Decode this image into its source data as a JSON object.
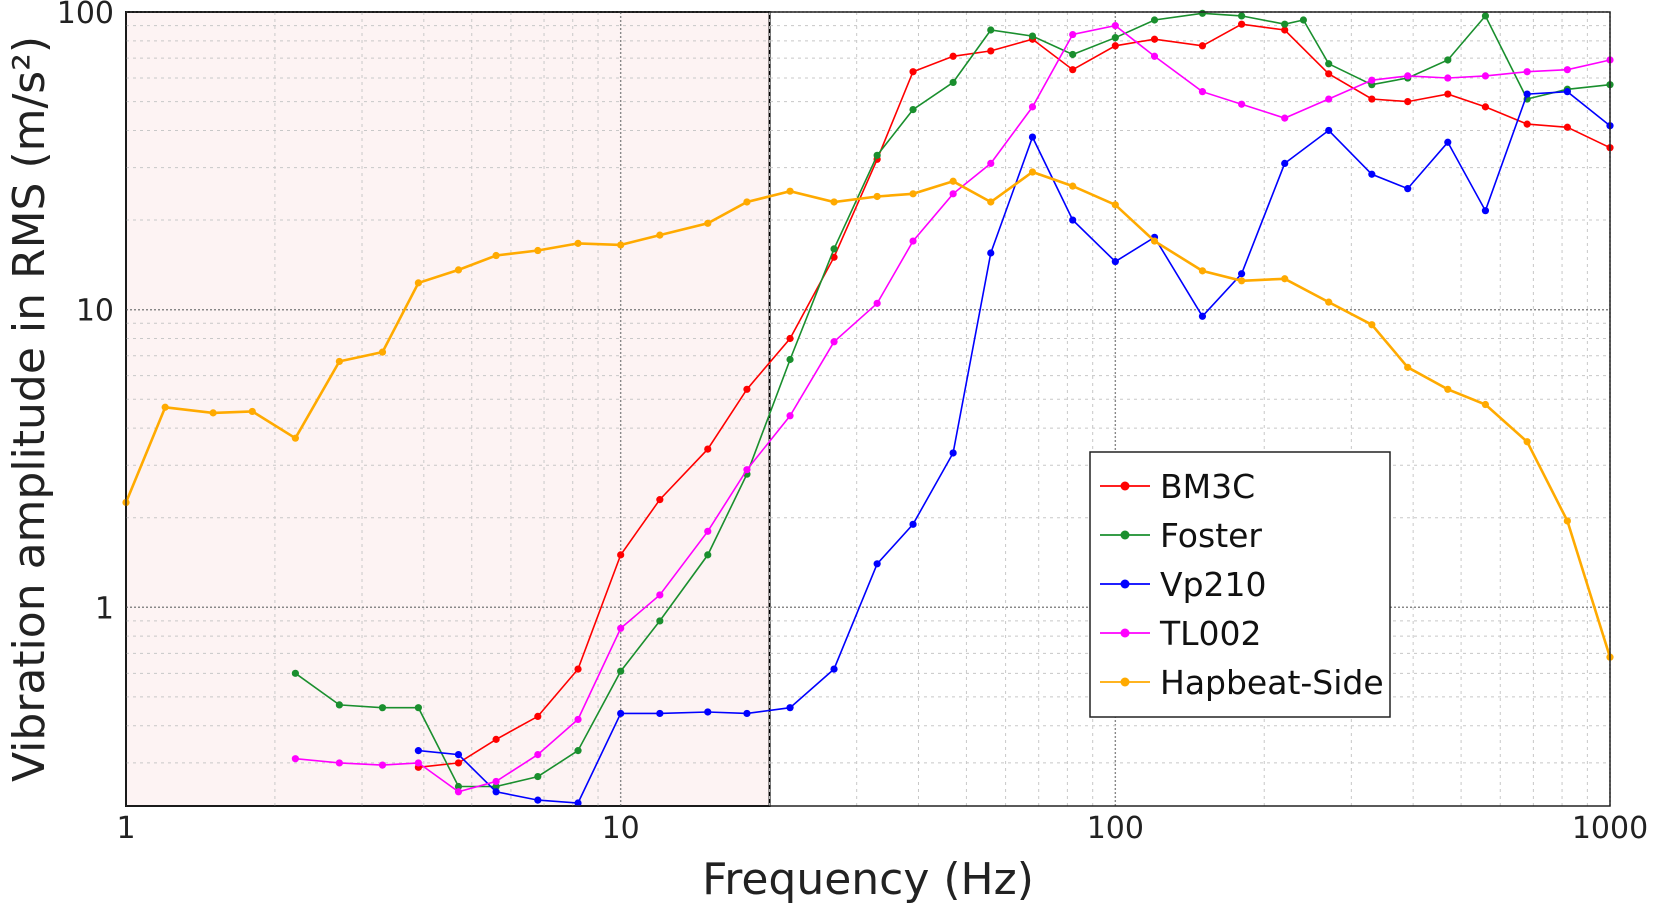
{
  "chart_data": {
    "type": "line",
    "xlabel": "Frequency (Hz)",
    "ylabel": "Vibration amplitude in RMS (m/s²)",
    "xscale": "log",
    "yscale": "log",
    "xlim": [
      1,
      1000
    ],
    "ylim": [
      0.215,
      100
    ],
    "x_ticks": [
      {
        "value": 1,
        "label": "1"
      },
      {
        "value": 10,
        "label": "10"
      },
      {
        "value": 100,
        "label": "100"
      },
      {
        "value": 1000,
        "label": "1000"
      }
    ],
    "y_ticks": [
      {
        "value": 1,
        "label": "1"
      },
      {
        "value": 10,
        "label": "10"
      },
      {
        "value": 100,
        "label": "100"
      }
    ],
    "grid": true,
    "legend_position": "center-right",
    "highlight_region": {
      "x": [
        1,
        20
      ],
      "y": [
        0.215,
        100
      ],
      "fill": "#fdf3f3"
    },
    "series": [
      {
        "name": "BM3C",
        "color": "#ff0000",
        "x": [
          3.9,
          4.7,
          5.6,
          6.8,
          8.2,
          10,
          12,
          15,
          18,
          22,
          27,
          33,
          39,
          47,
          56,
          68,
          82,
          100,
          120,
          150,
          180,
          220,
          270,
          330,
          390,
          470,
          560,
          680,
          820,
          1000
        ],
        "y": [
          0.29,
          0.3,
          0.36,
          0.43,
          0.62,
          1.5,
          2.3,
          3.4,
          5.4,
          8.0,
          15,
          32,
          63,
          71,
          74,
          81,
          64,
          77,
          81,
          77,
          91,
          87,
          62,
          51,
          50,
          53,
          48,
          42,
          41,
          35
        ]
      },
      {
        "name": "Foster",
        "color": "#1a8f2e",
        "x": [
          2.2,
          2.7,
          3.3,
          3.9,
          4.7,
          5.6,
          6.8,
          8.2,
          10,
          12,
          15,
          18,
          22,
          27,
          33,
          39,
          47,
          56,
          68,
          82,
          100,
          120,
          150,
          180,
          220,
          240,
          270,
          330,
          390,
          470,
          560,
          680,
          820,
          1000
        ],
        "y": [
          0.6,
          0.47,
          0.46,
          0.46,
          0.25,
          0.25,
          0.27,
          0.33,
          0.61,
          0.9,
          1.5,
          2.8,
          6.8,
          16,
          33,
          47,
          58,
          87,
          83,
          72,
          82,
          94,
          99,
          97,
          91,
          94,
          67,
          57,
          60,
          69,
          97,
          51,
          55,
          57
        ]
      },
      {
        "name": "Vp210",
        "color": "#0000ff",
        "x": [
          3.9,
          4.7,
          5.6,
          6.8,
          8.2,
          10,
          12,
          15,
          18,
          22,
          27,
          33,
          39,
          47,
          56,
          68,
          82,
          100,
          120,
          150,
          180,
          220,
          270,
          330,
          390,
          470,
          560,
          680,
          820,
          1000
        ],
        "y": [
          0.33,
          0.32,
          0.24,
          0.225,
          0.22,
          0.44,
          0.44,
          0.445,
          0.44,
          0.46,
          0.62,
          1.4,
          1.9,
          3.3,
          15.5,
          38,
          20,
          14.5,
          17.5,
          9.5,
          13.2,
          31,
          40,
          28.5,
          25.5,
          36.5,
          21.5,
          53,
          54,
          41.5
        ]
      },
      {
        "name": "TL002",
        "color": "#ff00ff",
        "x": [
          2.2,
          2.7,
          3.3,
          3.9,
          4.7,
          5.6,
          6.8,
          8.2,
          10,
          12,
          15,
          18,
          22,
          27,
          33,
          39,
          47,
          56,
          68,
          82,
          100,
          120,
          150,
          180,
          220,
          270,
          330,
          390,
          470,
          560,
          680,
          820,
          1000
        ],
        "y": [
          0.31,
          0.3,
          0.295,
          0.3,
          0.24,
          0.26,
          0.32,
          0.42,
          0.85,
          1.1,
          1.8,
          2.9,
          4.4,
          7.8,
          10.5,
          17,
          24.5,
          31,
          48,
          84,
          90,
          71,
          54,
          49,
          44,
          51,
          59,
          61,
          60,
          61,
          63,
          64,
          69
        ]
      },
      {
        "name": "Hapbeat-Side",
        "color": "#ffaa00",
        "x": [
          1,
          1.2,
          1.5,
          1.8,
          2.2,
          2.7,
          3.3,
          3.9,
          4.7,
          5.6,
          6.8,
          8.2,
          10,
          12,
          15,
          18,
          22,
          27,
          33,
          39,
          47,
          56,
          68,
          82,
          100,
          120,
          150,
          180,
          220,
          270,
          330,
          390,
          470,
          560,
          680,
          820,
          1000
        ],
        "y": [
          2.25,
          4.7,
          4.5,
          4.55,
          3.7,
          6.7,
          7.2,
          12.3,
          13.6,
          15.2,
          15.8,
          16.7,
          16.5,
          17.8,
          19.5,
          23,
          25,
          23,
          24,
          24.5,
          27,
          23,
          29,
          26,
          22.5,
          17,
          13.5,
          12.5,
          12.7,
          10.6,
          8.9,
          6.4,
          5.4,
          4.8,
          3.6,
          1.95,
          0.68
        ]
      }
    ]
  }
}
